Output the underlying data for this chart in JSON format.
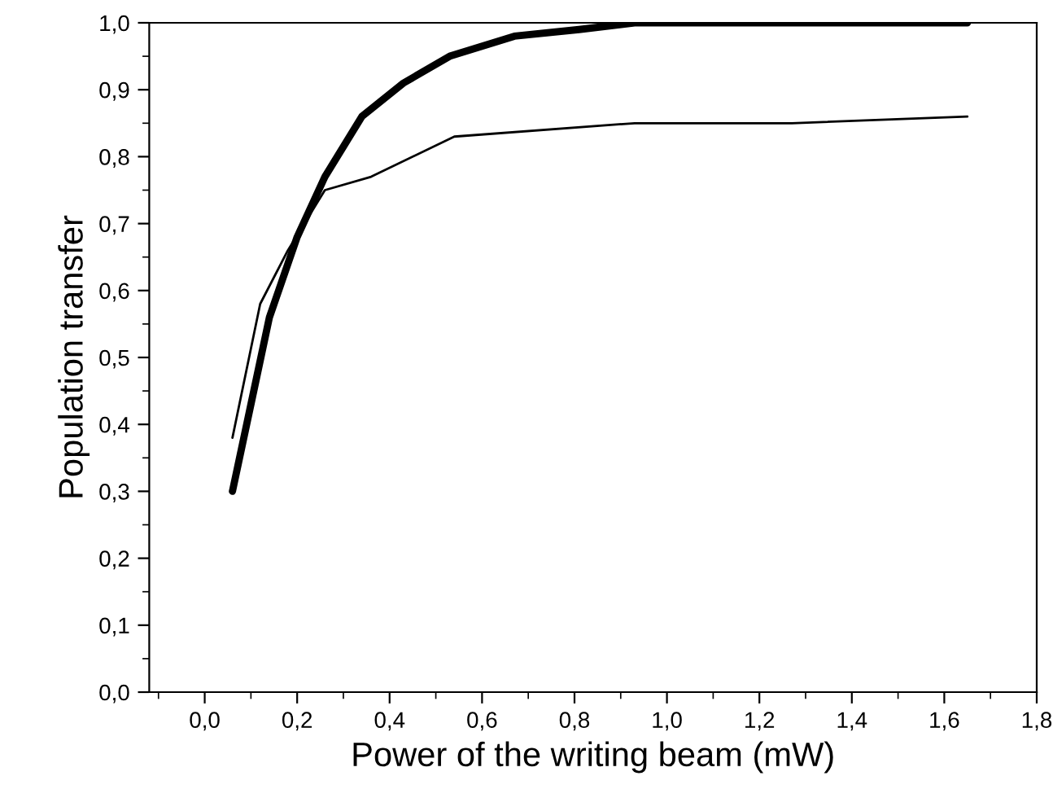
{
  "chart_data": {
    "type": "line",
    "xlabel": "Power of the writing beam (mW)",
    "ylabel": "Population transfer",
    "xlim": [
      -0.12,
      1.8
    ],
    "ylim": [
      0,
      1.0
    ],
    "xticks": [
      {
        "value": 0,
        "label": "0,0"
      },
      {
        "value": 0.2,
        "label": "0,2"
      },
      {
        "value": 0.4,
        "label": "0,4"
      },
      {
        "value": 0.6,
        "label": "0,6"
      },
      {
        "value": 0.8,
        "label": "0,8"
      },
      {
        "value": 1.0,
        "label": "1,0"
      },
      {
        "value": 1.2,
        "label": "1,2"
      },
      {
        "value": 1.4,
        "label": "1,4"
      },
      {
        "value": 1.6,
        "label": "1,6"
      },
      {
        "value": 1.8,
        "label": "1,8"
      }
    ],
    "yticks": [
      {
        "value": 0,
        "label": "0,0"
      },
      {
        "value": 0.1,
        "label": "0,1"
      },
      {
        "value": 0.2,
        "label": "0,2"
      },
      {
        "value": 0.3,
        "label": "0,3"
      },
      {
        "value": 0.4,
        "label": "0,4"
      },
      {
        "value": 0.5,
        "label": "0,5"
      },
      {
        "value": 0.6,
        "label": "0,6"
      },
      {
        "value": 0.7,
        "label": "0,7"
      },
      {
        "value": 0.8,
        "label": "0,8"
      },
      {
        "value": 0.9,
        "label": "0,9"
      },
      {
        "value": 1.0,
        "label": "1,0"
      }
    ],
    "grid": false,
    "legend": false,
    "marker": "none",
    "line_style": "solid",
    "series": [
      {
        "color": "#000000",
        "x": [
          0.06,
          0.1,
          0.14,
          0.2,
          0.26,
          0.34,
          0.43,
          0.53,
          0.67,
          0.81,
          0.93,
          1.1,
          1.3,
          1.5,
          1.65
        ],
        "values": [
          0.3,
          0.43,
          0.56,
          0.68,
          0.77,
          0.86,
          0.91,
          0.95,
          0.98,
          0.99,
          1.0,
          1.0,
          1.0,
          1.0,
          1.0
        ]
      },
      {
        "color": "#000000",
        "x": [
          0.06,
          0.12,
          0.18,
          0.26,
          0.36,
          0.54,
          0.93,
          1.27,
          1.65
        ],
        "values": [
          0.38,
          0.58,
          0.66,
          0.75,
          0.77,
          0.83,
          0.85,
          0.85,
          0.86
        ]
      }
    ]
  }
}
